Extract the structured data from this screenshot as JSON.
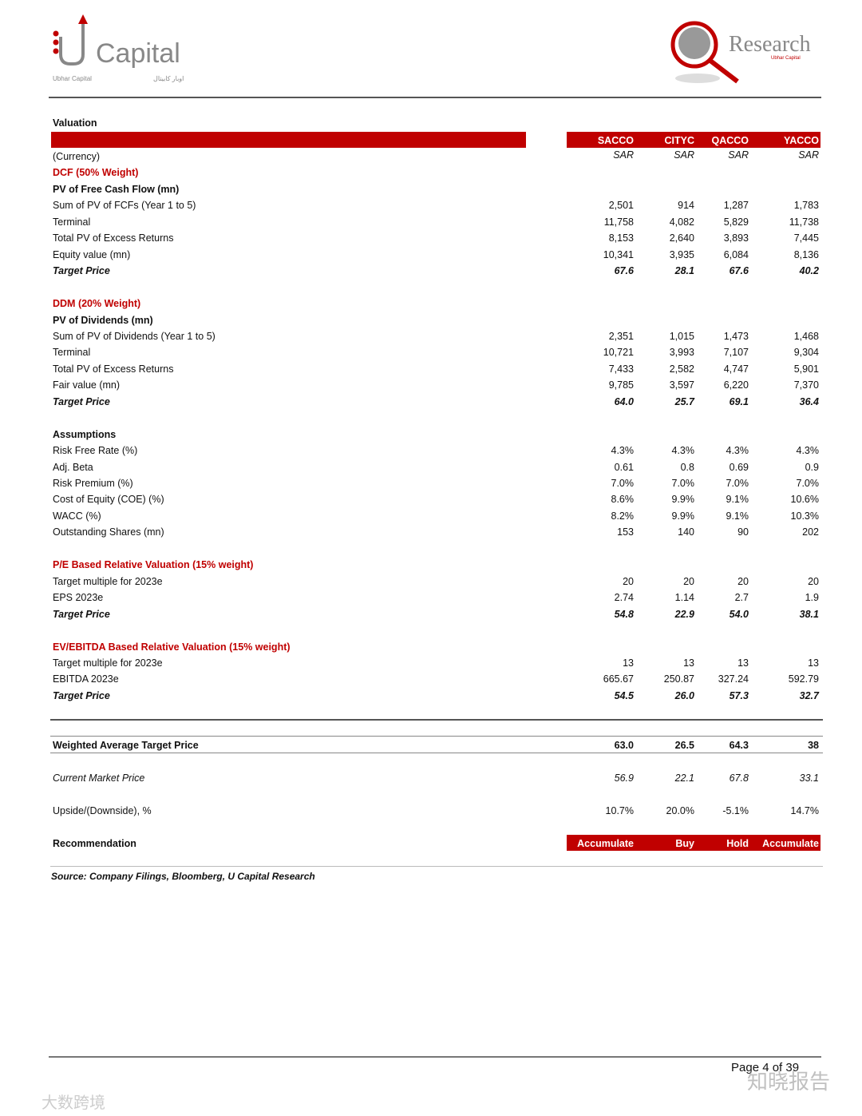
{
  "header": {
    "logo_left": {
      "brand": "Capital",
      "sub_en": "Ubhar Capital",
      "sub_ar": "اوبار كابيتال"
    },
    "logo_right": {
      "brand": "Research",
      "sub": "Ubhar Capital"
    }
  },
  "section_title": "Valuation",
  "columns": [
    "SACCO",
    "CITYC",
    "QACCO",
    "YACCO"
  ],
  "rows": [
    {
      "label": "(Currency)",
      "values": [
        "SAR",
        "SAR",
        "SAR",
        "SAR"
      ],
      "style": "currency"
    },
    {
      "label": "DCF (50% Weight)",
      "values": [],
      "style": "red"
    },
    {
      "label": "PV of Free Cash Flow (mn)",
      "values": [],
      "style": "bold"
    },
    {
      "label": "Sum of PV of FCFs (Year 1 to 5)",
      "values": [
        "2,501",
        "914",
        "1,287",
        "1,783"
      ],
      "style": ""
    },
    {
      "label": "Terminal",
      "values": [
        "11,758",
        "4,082",
        "5,829",
        "11,738"
      ],
      "style": ""
    },
    {
      "label": "Total PV of Excess Returns",
      "values": [
        "8,153",
        "2,640",
        "3,893",
        "7,445"
      ],
      "style": ""
    },
    {
      "label": "Equity value (mn)",
      "values": [
        "10,341",
        "3,935",
        "6,084",
        "8,136"
      ],
      "style": ""
    },
    {
      "label": "Target Price",
      "values": [
        "67.6",
        "28.1",
        "67.6",
        "40.2"
      ],
      "style": "bi"
    },
    {
      "label": "",
      "values": [],
      "style": ""
    },
    {
      "label": "DDM (20% Weight)",
      "values": [],
      "style": "red"
    },
    {
      "label": "PV of Dividends (mn)",
      "values": [],
      "style": "bold"
    },
    {
      "label": "Sum of PV of Dividends (Year 1 to 5)",
      "values": [
        "2,351",
        "1,015",
        "1,473",
        "1,468"
      ],
      "style": ""
    },
    {
      "label": "Terminal",
      "values": [
        "10,721",
        "3,993",
        "7,107",
        "9,304"
      ],
      "style": ""
    },
    {
      "label": "Total PV of Excess Returns",
      "values": [
        "7,433",
        "2,582",
        "4,747",
        "5,901"
      ],
      "style": ""
    },
    {
      "label": "Fair value (mn)",
      "values": [
        "9,785",
        "3,597",
        "6,220",
        "7,370"
      ],
      "style": ""
    },
    {
      "label": "Target Price",
      "values": [
        "64.0",
        "25.7",
        "69.1",
        "36.4"
      ],
      "style": "bi"
    },
    {
      "label": "",
      "values": [],
      "style": ""
    },
    {
      "label": "Assumptions",
      "values": [],
      "style": "bold"
    },
    {
      "label": "Risk Free Rate (%)",
      "values": [
        "4.3%",
        "4.3%",
        "4.3%",
        "4.3%"
      ],
      "style": ""
    },
    {
      "label": "Adj. Beta",
      "values": [
        "0.61",
        "0.8",
        "0.69",
        "0.9"
      ],
      "style": ""
    },
    {
      "label": "Risk Premium (%)",
      "values": [
        "7.0%",
        "7.0%",
        "7.0%",
        "7.0%"
      ],
      "style": ""
    },
    {
      "label": "Cost of Equity (COE) (%)",
      "values": [
        "8.6%",
        "9.9%",
        "9.1%",
        "10.6%"
      ],
      "style": ""
    },
    {
      "label": "WACC (%)",
      "values": [
        "8.2%",
        "9.9%",
        "9.1%",
        "10.3%"
      ],
      "style": ""
    },
    {
      "label": "Outstanding Shares (mn)",
      "values": [
        "153",
        "140",
        "90",
        "202"
      ],
      "style": ""
    },
    {
      "label": "",
      "values": [],
      "style": ""
    },
    {
      "label": "P/E Based Relative Valuation (15% weight)",
      "values": [],
      "style": "red"
    },
    {
      "label": "Target multiple for 2023e",
      "values": [
        "20",
        "20",
        "20",
        "20"
      ],
      "style": ""
    },
    {
      "label": "EPS 2023e",
      "values": [
        "2.74",
        "1.14",
        "2.7",
        "1.9"
      ],
      "style": ""
    },
    {
      "label": "Target Price",
      "values": [
        "54.8",
        "22.9",
        "54.0",
        "38.1"
      ],
      "style": "bi"
    },
    {
      "label": "",
      "values": [],
      "style": ""
    },
    {
      "label": "EV/EBITDA Based Relative Valuation (15% weight)",
      "values": [],
      "style": "red"
    },
    {
      "label": "Target multiple for 2023e",
      "values": [
        "13",
        "13",
        "13",
        "13"
      ],
      "style": ""
    },
    {
      "label": "EBITDA 2023e",
      "values": [
        "665.67",
        "250.87",
        "327.24",
        "592.79"
      ],
      "style": ""
    },
    {
      "label": "Target Price",
      "values": [
        "54.5",
        "26.0",
        "57.3",
        "32.7"
      ],
      "style": "bi"
    }
  ],
  "summary": {
    "weighted": {
      "label": "Weighted Average Target Price",
      "values": [
        "63.0",
        "26.5",
        "64.3",
        "38"
      ]
    },
    "market": {
      "label": "Current Market Price",
      "values": [
        "56.9",
        "22.1",
        "67.8",
        "33.1"
      ]
    },
    "upside": {
      "label": "Upside/(Downside), %",
      "values": [
        "10.7%",
        "20.0%",
        "-5.1%",
        "14.7%"
      ]
    },
    "recommendation": {
      "label": "Recommendation",
      "values": [
        "Accumulate",
        "Buy",
        "Hold",
        "Accumulate"
      ]
    }
  },
  "source": "Source: Company Filings, Bloomberg, U Capital Research",
  "footer": {
    "page": "Page 4 of 39",
    "watermark_right": "知晓报告",
    "watermark_left": "大数跨境"
  },
  "colors": {
    "accent": "#c00000",
    "rule": "#555555"
  }
}
